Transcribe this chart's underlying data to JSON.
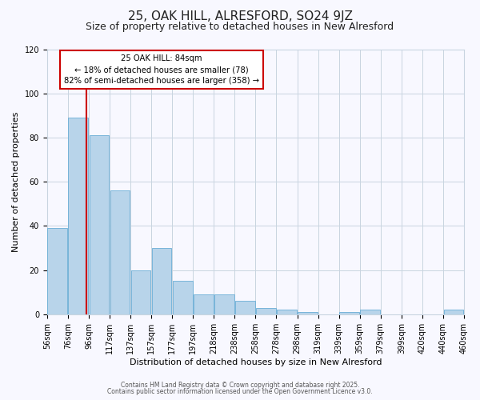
{
  "title": "25, OAK HILL, ALRESFORD, SO24 9JZ",
  "subtitle": "Size of property relative to detached houses in New Alresford",
  "xlabel": "Distribution of detached houses by size in New Alresford",
  "ylabel": "Number of detached properties",
  "bar_values": [
    39,
    89,
    81,
    56,
    20,
    30,
    15,
    9,
    9,
    6,
    3,
    2,
    1,
    0,
    1,
    2,
    0,
    0,
    0,
    2
  ],
  "bin_labels": [
    "56sqm",
    "76sqm",
    "96sqm",
    "117sqm",
    "137sqm",
    "157sqm",
    "177sqm",
    "197sqm",
    "218sqm",
    "238sqm",
    "258sqm",
    "278sqm",
    "298sqm",
    "319sqm",
    "339sqm",
    "359sqm",
    "379sqm",
    "399sqm",
    "420sqm",
    "440sqm",
    "460sqm"
  ],
  "bar_color": "#b8d4ea",
  "bar_edge_color": "#6aaed6",
  "vline_color": "#cc0000",
  "vline_bar_index": 1,
  "annotation_title": "25 OAK HILL: 84sqm",
  "annotation_line1": "← 18% of detached houses are smaller (78)",
  "annotation_line2": "82% of semi-detached houses are larger (358) →",
  "annotation_box_edge_color": "#cc0000",
  "ylim": [
    0,
    120
  ],
  "yticks": [
    0,
    20,
    40,
    60,
    80,
    100,
    120
  ],
  "footer1": "Contains HM Land Registry data © Crown copyright and database right 2025.",
  "footer2": "Contains public sector information licensed under the Open Government Licence v3.0.",
  "background_color": "#f8f8ff",
  "grid_color": "#c8d4e0",
  "title_fontsize": 11,
  "subtitle_fontsize": 9,
  "axis_label_fontsize": 8,
  "tick_fontsize": 7
}
